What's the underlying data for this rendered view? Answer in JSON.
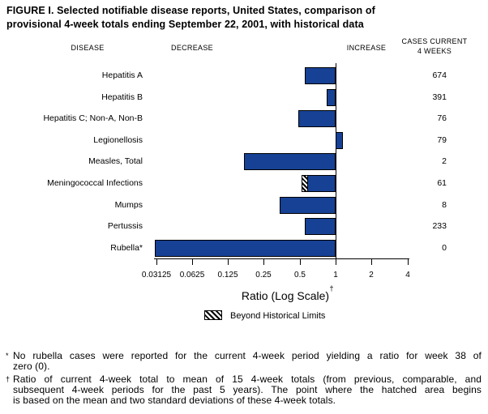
{
  "title_lines": [
    "FIGURE I. Selected notifiable disease reports, United States, comparison of",
    "provisional 4-week totals ending September 22, 2001, with historical data"
  ],
  "column_headers": {
    "disease": "DISEASE",
    "decrease": "DECREASE",
    "increase": "INCREASE",
    "cases_line1": "CASES CURRENT",
    "cases_line2": "4 WEEKS"
  },
  "chart_data": {
    "type": "bar",
    "orientation": "horizontal",
    "x_scale": "log",
    "x_axis_label": "Ratio (Log Scale)",
    "axis_footnote_marker": "†",
    "x_ticks": [
      0.03125,
      0.0625,
      0.125,
      0.25,
      0.5,
      1,
      2,
      4
    ],
    "x_tick_labels": [
      "0.03125",
      "0.0625",
      "0.125",
      "0.25",
      "0.5",
      "1",
      "2",
      "4"
    ],
    "baseline_ratio": 1,
    "bar_color": "#164194",
    "legend": [
      {
        "swatch": "hatched",
        "label": "Beyond Historical Limits"
      }
    ],
    "rows": [
      {
        "disease": "Hepatitis A",
        "ratio": 0.55,
        "cases": 674
      },
      {
        "disease": "Hepatitis B",
        "ratio": 0.84,
        "cases": 391
      },
      {
        "disease": "Hepatitis C; Non-A, Non-B",
        "ratio": 0.49,
        "cases": 76
      },
      {
        "disease": "Legionellosis",
        "ratio": 1.15,
        "cases": 79
      },
      {
        "disease": "Measles, Total",
        "ratio": 0.17,
        "cases": 2
      },
      {
        "disease": "Meningococcal Infections",
        "ratio": 0.52,
        "cases": 61,
        "beyond_historical_limits": true,
        "hatch_end_ratio": 0.59
      },
      {
        "disease": "Mumps",
        "ratio": 0.34,
        "cases": 8
      },
      {
        "disease": "Pertussis",
        "ratio": 0.55,
        "cases": 233
      },
      {
        "disease": "Rubella*",
        "ratio": 0,
        "cases": 0,
        "bar_extends_to_axis_start": true
      }
    ]
  },
  "footnotes": [
    {
      "marker": "*",
      "lines": [
        "No rubella cases were reported for the current 4-week period yielding a ratio for week 38 of",
        "zero (0)."
      ]
    },
    {
      "marker": "†",
      "lines": [
        "Ratio of current 4-week total to mean of 15 4-week totals (from previous, comparable, and",
        "subsequent 4-week periods for the past 5 years). The point where the hatched area begins",
        "is based on the mean and two standard deviations of these 4-week totals."
      ]
    }
  ]
}
